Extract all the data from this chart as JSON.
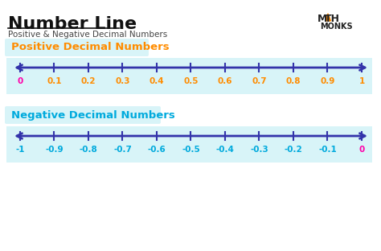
{
  "title": "Number Line",
  "subtitle": "Positive & Negative Decimal Numbers",
  "bg_color": "#ffffff",
  "section1_label": "Positive Decimal Numbers",
  "section2_label": "Negative Decimal Numbers",
  "section_label_color": "#ff8c00",
  "section2_label_color": "#00aadd",
  "section_bg_color": "#d8f4f8",
  "line_color": "#3333aa",
  "tick_color": "#3333aa",
  "pos_tick_labels": [
    "0",
    "0.1",
    "0.2",
    "0.3",
    "0.4",
    "0.5",
    "0.6",
    "0.7",
    "0.8",
    "0.9",
    "1"
  ],
  "neg_tick_labels": [
    "-1",
    "-0.9",
    "-0.8",
    "-0.7",
    "-0.6",
    "-0.5",
    "-0.4",
    "-0.3",
    "-0.2",
    "-0.1",
    "0"
  ],
  "pos_zero_color": "#ff00aa",
  "neg_zero_color": "#ff00aa",
  "pos_label_color": "#ff8c00",
  "neg_label_color": "#00aadd",
  "logo_text1": "M▲TH",
  "logo_text2": "MONKS",
  "logo_color": "#222222",
  "logo_triangle_color": "#ff8c00"
}
